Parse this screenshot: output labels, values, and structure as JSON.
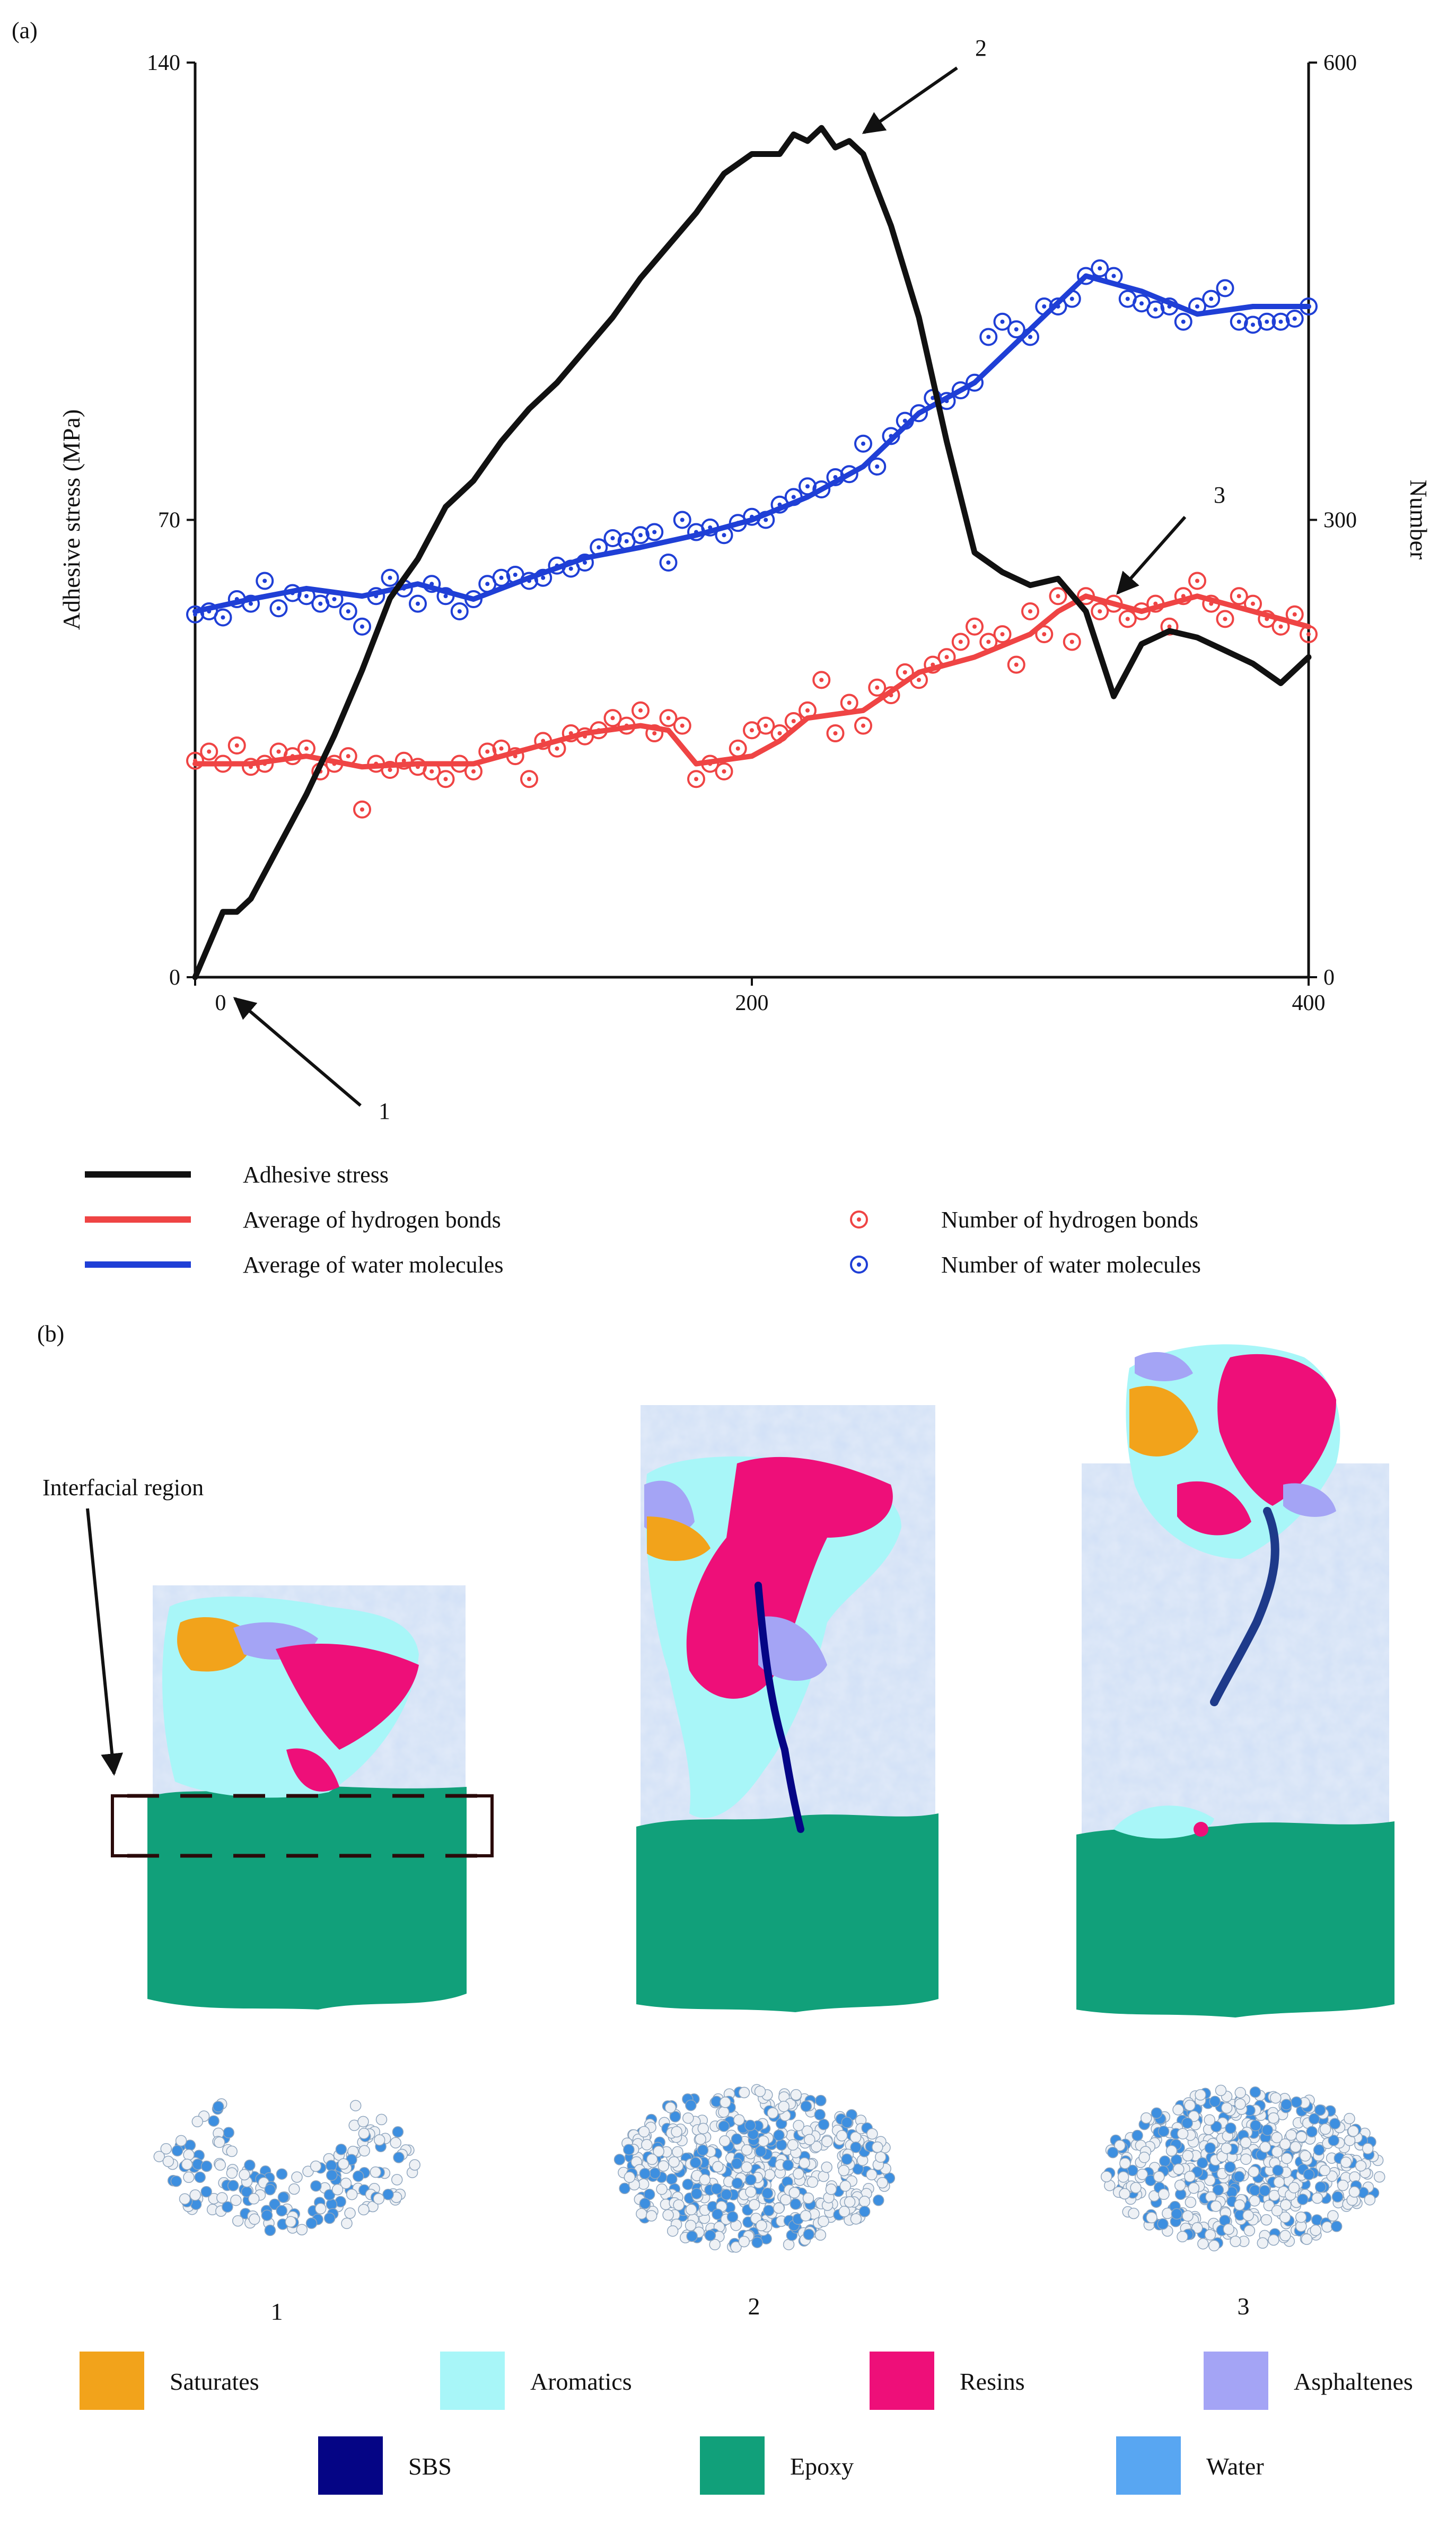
{
  "panel_a_label": "(a)",
  "panel_b_label": "(b)",
  "chart_data": {
    "type": "line",
    "xlim": [
      0,
      400
    ],
    "x_ticks": [
      0,
      200,
      400
    ],
    "ylabel_left": "Adhesive stress (MPa)",
    "ylim_left": [
      0,
      140
    ],
    "y_ticks_left": [
      0,
      70,
      140
    ],
    "ylabel_right": "Number",
    "ylim_right": [
      0,
      600
    ],
    "y_ticks_right": [
      0,
      300,
      600
    ],
    "series": [
      {
        "name": "Adhesive stress",
        "axis": "left",
        "style": "line",
        "color": "#111111",
        "x": [
          0,
          5,
          10,
          15,
          20,
          25,
          30,
          35,
          40,
          50,
          60,
          70,
          80,
          90,
          100,
          110,
          120,
          130,
          140,
          150,
          160,
          170,
          180,
          190,
          200,
          210,
          215,
          220,
          225,
          230,
          235,
          240,
          250,
          260,
          270,
          280,
          290,
          300,
          310,
          320,
          330,
          340,
          350,
          360,
          370,
          380,
          390,
          400
        ],
        "y": [
          0,
          5,
          10,
          10,
          12,
          16,
          20,
          24,
          28,
          37,
          47,
          58,
          64,
          72,
          76,
          82,
          87,
          91,
          96,
          101,
          107,
          112,
          117,
          123,
          126,
          126,
          129,
          128,
          130,
          127,
          128,
          126,
          115,
          101,
          82,
          65,
          62,
          60,
          61,
          56,
          43,
          51,
          53,
          52,
          50,
          48,
          45,
          49
        ]
      },
      {
        "name": "Average of hydrogen bonds",
        "axis": "right",
        "style": "line",
        "color": "#ef4444",
        "x": [
          0,
          20,
          40,
          60,
          80,
          100,
          120,
          140,
          160,
          170,
          180,
          200,
          210,
          220,
          240,
          260,
          280,
          300,
          310,
          320,
          340,
          360,
          380,
          400
        ],
        "y": [
          140,
          140,
          145,
          138,
          140,
          140,
          150,
          160,
          165,
          162,
          140,
          145,
          155,
          170,
          175,
          200,
          210,
          225,
          240,
          250,
          240,
          250,
          240,
          230
        ]
      },
      {
        "name": "Average of water molecules",
        "axis": "right",
        "style": "line",
        "color": "#1f3fd6",
        "x": [
          0,
          20,
          40,
          60,
          80,
          100,
          120,
          140,
          160,
          180,
          200,
          220,
          240,
          260,
          280,
          300,
          320,
          340,
          360,
          380,
          400
        ],
        "y": [
          240,
          248,
          255,
          250,
          258,
          248,
          262,
          275,
          282,
          290,
          300,
          315,
          335,
          370,
          390,
          425,
          460,
          450,
          435,
          440,
          440
        ]
      },
      {
        "name": "Number of hydrogen bonds",
        "axis": "right",
        "style": "markers",
        "color": "#ef4444",
        "x": [
          0,
          5,
          10,
          15,
          20,
          25,
          30,
          35,
          40,
          45,
          50,
          55,
          60,
          65,
          70,
          75,
          80,
          85,
          90,
          95,
          100,
          105,
          110,
          115,
          120,
          125,
          130,
          135,
          140,
          145,
          150,
          155,
          160,
          165,
          170,
          175,
          180,
          185,
          190,
          195,
          200,
          205,
          210,
          215,
          220,
          225,
          230,
          235,
          240,
          245,
          250,
          255,
          260,
          265,
          270,
          275,
          280,
          285,
          290,
          295,
          300,
          305,
          310,
          315,
          320,
          325,
          330,
          335,
          340,
          345,
          350,
          355,
          360,
          365,
          370,
          375,
          380,
          385,
          390,
          395,
          400
        ],
        "y": [
          142,
          148,
          140,
          152,
          138,
          140,
          148,
          145,
          150,
          135,
          140,
          145,
          110,
          140,
          136,
          142,
          138,
          135,
          130,
          140,
          135,
          148,
          150,
          145,
          130,
          155,
          150,
          160,
          158,
          162,
          170,
          165,
          175,
          160,
          170,
          165,
          130,
          140,
          135,
          150,
          162,
          165,
          160,
          168,
          175,
          195,
          160,
          180,
          165,
          190,
          185,
          200,
          195,
          205,
          210,
          220,
          230,
          220,
          225,
          205,
          240,
          225,
          250,
          220,
          250,
          240,
          245,
          235,
          240,
          245,
          230,
          250,
          260,
          245,
          235,
          250,
          245,
          235,
          230,
          238,
          225
        ]
      },
      {
        "name": "Number of water molecules",
        "axis": "right",
        "style": "markers",
        "color": "#1f3fd6",
        "x": [
          0,
          5,
          10,
          15,
          20,
          25,
          30,
          35,
          40,
          45,
          50,
          55,
          60,
          65,
          70,
          75,
          80,
          85,
          90,
          95,
          100,
          105,
          110,
          115,
          120,
          125,
          130,
          135,
          140,
          145,
          150,
          155,
          160,
          165,
          170,
          175,
          180,
          185,
          190,
          195,
          200,
          205,
          210,
          215,
          220,
          225,
          230,
          235,
          240,
          245,
          250,
          255,
          260,
          265,
          270,
          275,
          280,
          285,
          290,
          295,
          300,
          305,
          310,
          315,
          320,
          325,
          330,
          335,
          340,
          345,
          350,
          355,
          360,
          365,
          370,
          375,
          380,
          385,
          390,
          395,
          400
        ],
        "y": [
          238,
          240,
          236,
          248,
          245,
          260,
          242,
          252,
          250,
          245,
          248,
          240,
          230,
          250,
          262,
          255,
          245,
          258,
          250,
          240,
          248,
          258,
          262,
          264,
          260,
          262,
          270,
          268,
          272,
          282,
          288,
          286,
          290,
          292,
          272,
          300,
          292,
          295,
          290,
          298,
          302,
          300,
          310,
          315,
          322,
          320,
          328,
          330,
          350,
          335,
          355,
          365,
          370,
          380,
          378,
          385,
          390,
          420,
          430,
          425,
          420,
          440,
          440,
          445,
          460,
          465,
          460,
          445,
          442,
          438,
          440,
          430,
          440,
          445,
          452,
          430,
          428,
          430,
          430,
          432,
          440
        ]
      }
    ],
    "annotations": [
      {
        "label": "1",
        "x": 0,
        "axis_value": 0
      },
      {
        "label": "2",
        "x": 233,
        "axis_value": 127
      },
      {
        "label": "3",
        "x": 320,
        "axis_value": 245
      }
    ],
    "legend": [
      {
        "label": "Adhesive stress",
        "kind": "line",
        "color": "#111111"
      },
      {
        "label": "Average of hydrogen bonds",
        "kind": "line",
        "color": "#ef4444"
      },
      {
        "label": "Average of water molecules",
        "kind": "line",
        "color": "#1f3fd6"
      },
      {
        "label": "Number of hydrogen bonds",
        "kind": "marker",
        "color": "#ef4444"
      },
      {
        "label": "Number of water molecules",
        "kind": "marker",
        "color": "#1f3fd6"
      }
    ]
  },
  "panel_b": {
    "interfacial_label": "Interfacial region",
    "snapshot_labels": [
      "1",
      "2",
      "3"
    ],
    "legend": [
      {
        "label": "Saturates",
        "color": "#f2a31b"
      },
      {
        "label": "Aromatics",
        "color": "#a8f6f8"
      },
      {
        "label": "Resins",
        "color": "#ee0f79"
      },
      {
        "label": "Asphaltenes",
        "color": "#a4a4f5"
      },
      {
        "label": "SBS",
        "color": "#050585"
      },
      {
        "label": "Epoxy",
        "color": "#11a07a"
      },
      {
        "label": "Water",
        "color": "#58a6f2"
      }
    ]
  }
}
